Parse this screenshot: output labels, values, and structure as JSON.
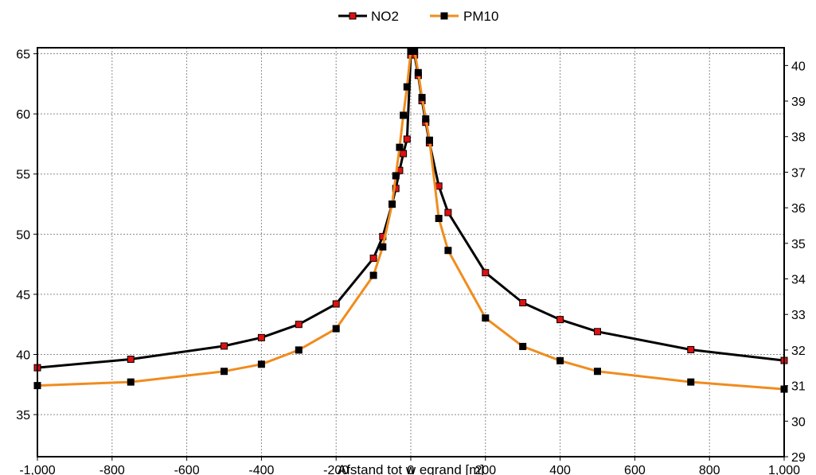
{
  "chart_data": {
    "type": "line",
    "xlabel": "Afstand tot w egrand [m]",
    "xlim": [
      -1000,
      1000
    ],
    "x_ticks": [
      -1000,
      -800,
      -600,
      -400,
      -200,
      0,
      200,
      400,
      600,
      800,
      1000
    ],
    "x_tick_labels": [
      "-1,000",
      "-800",
      "-600",
      "-400",
      "-200",
      "0",
      "200",
      "400",
      "600",
      "800",
      "1,000"
    ],
    "ylim_left": [
      31.5,
      65.5
    ],
    "y_left_ticks": [
      35,
      40,
      45,
      50,
      55,
      60,
      65
    ],
    "ylim_right": [
      29,
      40.5
    ],
    "y_right_ticks": [
      29,
      30,
      31,
      32,
      33,
      34,
      35,
      36,
      37,
      38,
      39,
      40
    ],
    "grid": true,
    "legend_position": "top-center",
    "series": [
      {
        "name": "NO2",
        "axis": "left",
        "line_color": "#000000",
        "marker_color": "#dd1111",
        "points": [
          [
            -1000,
            38.9
          ],
          [
            -750,
            39.6
          ],
          [
            -500,
            40.7
          ],
          [
            -400,
            41.4
          ],
          [
            -300,
            42.5
          ],
          [
            -200,
            44.2
          ],
          [
            -100,
            48.0
          ],
          [
            -75,
            49.8
          ],
          [
            -50,
            52.5
          ],
          [
            -40,
            53.8
          ],
          [
            -30,
            55.3
          ],
          [
            -20,
            56.7
          ],
          [
            -10,
            57.9
          ],
          [
            0,
            64.9
          ],
          [
            10,
            64.9
          ],
          [
            20,
            63.2
          ],
          [
            30,
            61.1
          ],
          [
            40,
            59.3
          ],
          [
            50,
            57.6
          ],
          [
            75,
            54.0
          ],
          [
            100,
            51.8
          ],
          [
            200,
            46.8
          ],
          [
            300,
            44.3
          ],
          [
            400,
            42.9
          ],
          [
            500,
            41.9
          ],
          [
            750,
            40.4
          ],
          [
            1000,
            39.5
          ]
        ]
      },
      {
        "name": "PM10",
        "axis": "right",
        "line_color": "#f08c1e",
        "marker_color": "#000000",
        "points": [
          [
            -1000,
            31.0
          ],
          [
            -750,
            31.1
          ],
          [
            -500,
            31.4
          ],
          [
            -400,
            31.6
          ],
          [
            -300,
            32.0
          ],
          [
            -200,
            32.6
          ],
          [
            -100,
            34.1
          ],
          [
            -75,
            34.9
          ],
          [
            -50,
            36.1
          ],
          [
            -40,
            36.9
          ],
          [
            -30,
            37.7
          ],
          [
            -20,
            38.6
          ],
          [
            -10,
            39.4
          ],
          [
            0,
            40.4
          ],
          [
            10,
            40.4
          ],
          [
            20,
            39.8
          ],
          [
            30,
            39.1
          ],
          [
            40,
            38.5
          ],
          [
            50,
            37.9
          ],
          [
            75,
            35.7
          ],
          [
            100,
            34.8
          ],
          [
            200,
            32.9
          ],
          [
            300,
            32.1
          ],
          [
            400,
            31.7
          ],
          [
            500,
            31.4
          ],
          [
            750,
            31.1
          ],
          [
            1000,
            30.9
          ]
        ]
      }
    ]
  }
}
